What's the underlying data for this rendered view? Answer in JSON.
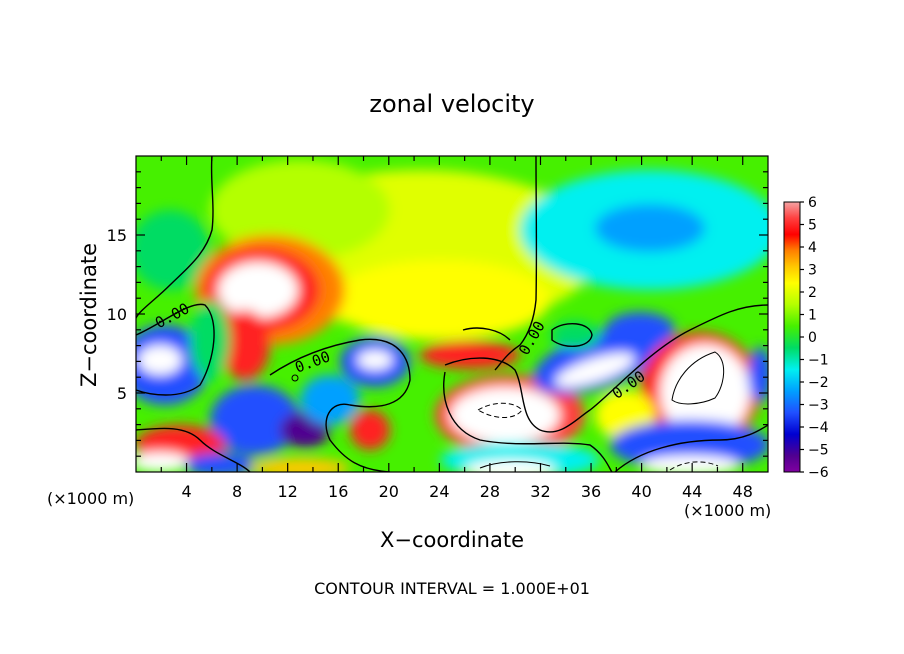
{
  "chart_data": {
    "type": "heatmap",
    "title": "zonal velocity",
    "xlabel": "X−coordinate",
    "ylabel": "Z−coordinate",
    "x_unit_left": "(×1000 m)",
    "x_unit_right": "(×1000 m)",
    "footer": "CONTOUR INTERVAL = 1.000E+01",
    "xlim": [
      0,
      50
    ],
    "ylim": [
      0,
      20
    ],
    "x_ticks": [
      "4",
      "8",
      "12",
      "16",
      "20",
      "24",
      "28",
      "32",
      "36",
      "40",
      "44",
      "48"
    ],
    "y_ticks": [
      "5",
      "10",
      "15"
    ],
    "contour_labels": [
      "0.00",
      "0.00",
      "0.00",
      "0.00"
    ],
    "colorbar": {
      "range": [
        -6,
        6
      ],
      "ticks": [
        "6",
        "5",
        "4",
        "3",
        "2",
        "1",
        "0",
        "−1",
        "−2",
        "−3",
        "−4",
        "−5",
        "−6"
      ],
      "colors": [
        "#ffffff",
        "#f4a3a3",
        "#ff4040",
        "#ff0000",
        "#ff8000",
        "#ffc800",
        "#ffff00",
        "#b4ff00",
        "#46f000",
        "#00dc64",
        "#00f0f0",
        "#00a0ff",
        "#2050ff",
        "#0000d0",
        "#500090",
        "#8000a0"
      ]
    }
  }
}
